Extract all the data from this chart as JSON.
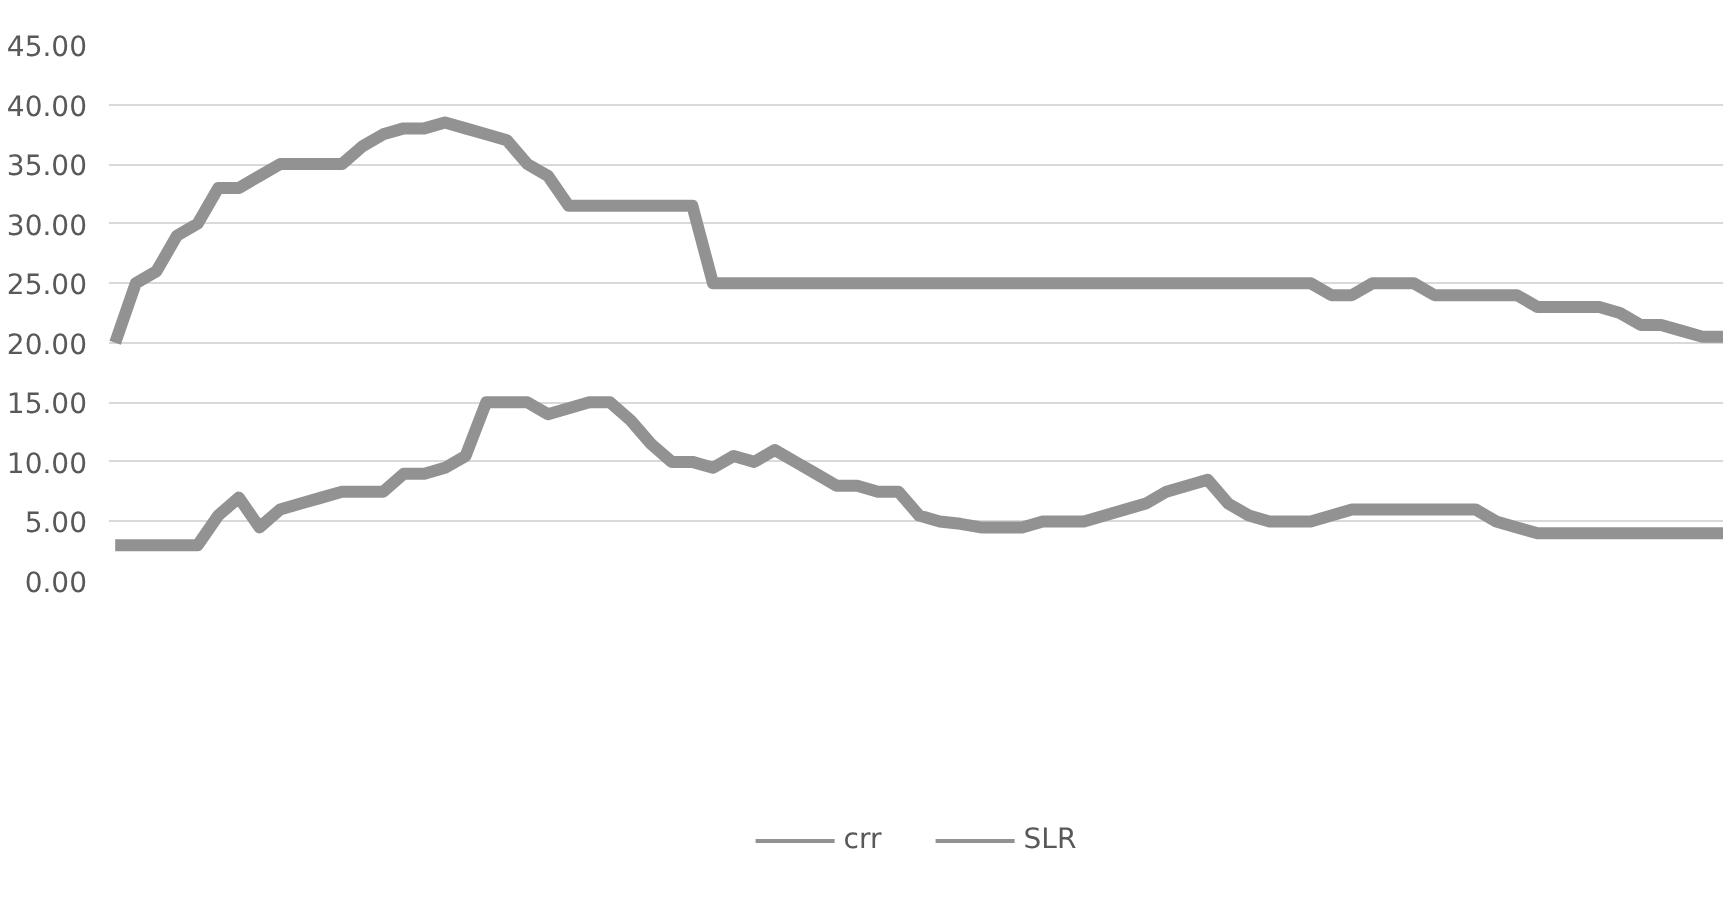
{
  "chart_data": {
    "type": "line",
    "categories": [
      null,
      null,
      null,
      null,
      null,
      null,
      null,
      null,
      null,
      null,
      null,
      null,
      null,
      null,
      null,
      null,
      null,
      null,
      null,
      null,
      null,
      null,
      null,
      null,
      null,
      null,
      null,
      null,
      null,
      null,
      null,
      null,
      null,
      null,
      null,
      null,
      null,
      null,
      null,
      null,
      null,
      null,
      null,
      null,
      null,
      null,
      null,
      null,
      null,
      null,
      null,
      null,
      null,
      null,
      null,
      null,
      null,
      null,
      null,
      null,
      null,
      null,
      null,
      null,
      null,
      null,
      null,
      null,
      null,
      null,
      null,
      null,
      null,
      null,
      null,
      null,
      null,
      null,
      null
    ],
    "series": [
      {
        "name": "crr",
        "color": "#929292",
        "values": [
          20,
          25,
          26,
          29,
          30,
          33,
          33,
          34,
          35,
          35,
          35,
          35,
          36.5,
          37.5,
          38,
          38,
          38.5,
          38,
          37.5,
          37,
          35,
          34,
          31.5,
          31.5,
          31.5,
          31.5,
          31.5,
          31.5,
          31.5,
          25,
          25,
          25,
          25,
          25,
          25,
          25,
          25,
          25,
          25,
          25,
          25,
          25,
          25,
          25,
          25,
          25,
          25,
          25,
          25,
          25,
          25,
          25,
          25,
          25,
          25,
          25,
          25,
          25,
          25,
          24,
          24,
          25,
          25,
          25,
          24,
          24,
          24,
          24,
          24,
          23,
          23,
          23,
          23,
          22.5,
          21.5,
          21.5,
          21,
          20.5,
          20.5
        ]
      },
      {
        "name": "SLR",
        "color": "#929292",
        "values": [
          3,
          3,
          3,
          3,
          3,
          5.5,
          7,
          4.5,
          6,
          6.5,
          7,
          7.5,
          7.5,
          7.5,
          9,
          9,
          9.5,
          10.5,
          15,
          15,
          15,
          14,
          14.5,
          15,
          15,
          13.5,
          11.5,
          10,
          10,
          9.5,
          10.5,
          10,
          11,
          10,
          9,
          8,
          8,
          7.5,
          7.5,
          5.5,
          5,
          4.8,
          4.5,
          4.5,
          4.5,
          5,
          5,
          5,
          5.5,
          6,
          6.5,
          7.5,
          8,
          8.5,
          6.5,
          5.5,
          5,
          5,
          5,
          5.5,
          6,
          6,
          6,
          6,
          6,
          6,
          6,
          5,
          4.5,
          4,
          4,
          4,
          4,
          4,
          4,
          4,
          4,
          4,
          4
        ]
      }
    ],
    "ylim": [
      0,
      45
    ],
    "yticks": [
      {
        "value": 0,
        "label": "0.00"
      },
      {
        "value": 5,
        "label": "5.00"
      },
      {
        "value": 10,
        "label": "10.00"
      },
      {
        "value": 15,
        "label": "15.00"
      },
      {
        "value": 20,
        "label": "20.00"
      },
      {
        "value": 25,
        "label": "25.00"
      },
      {
        "value": 30,
        "label": "30.00"
      },
      {
        "value": 35,
        "label": "35.00"
      },
      {
        "value": 40,
        "label": "40.00"
      },
      {
        "value": 45,
        "label": "45.00"
      }
    ],
    "grid": "y",
    "legend": "bottom",
    "marker": "none",
    "line_style": "solid"
  }
}
